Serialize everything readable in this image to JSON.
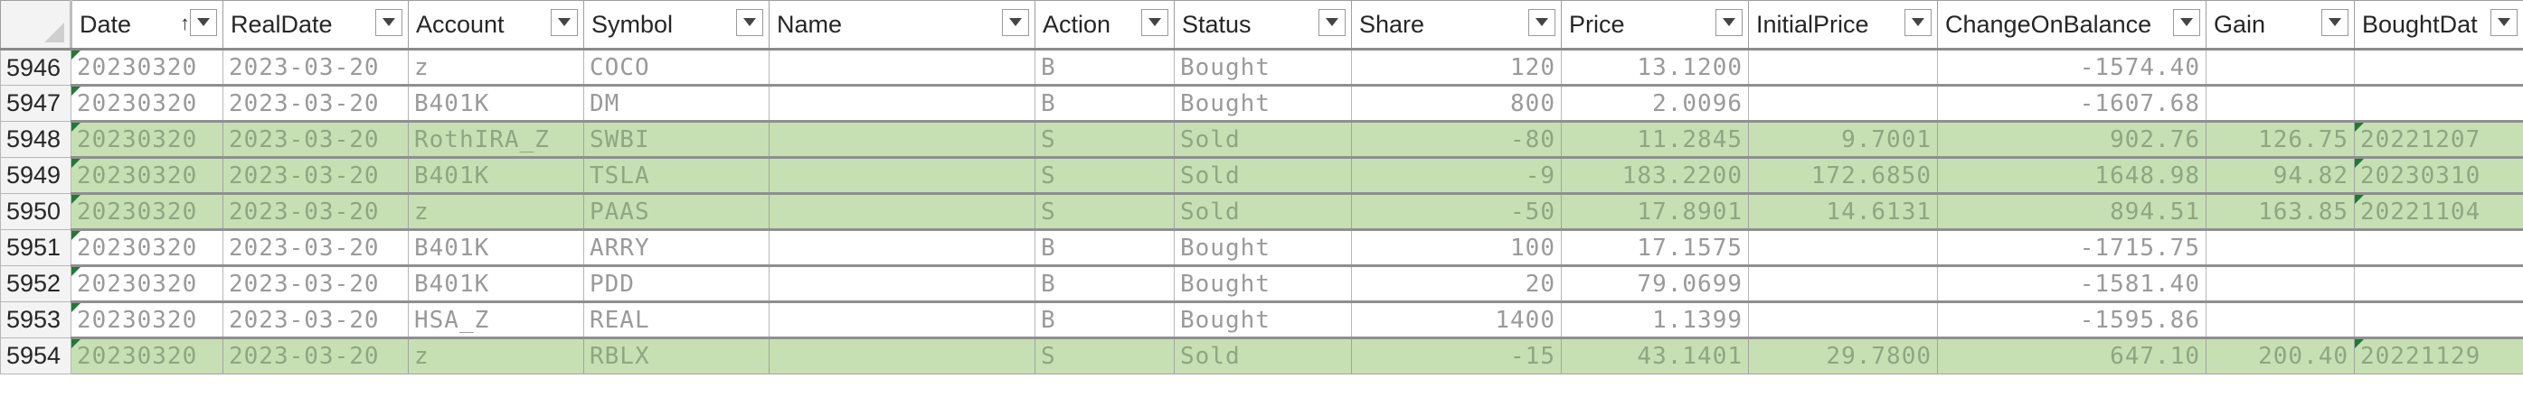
{
  "columns": [
    {
      "label": "Date",
      "sorted": true,
      "sort_glyph": "↑"
    },
    {
      "label": "RealDate"
    },
    {
      "label": "Account"
    },
    {
      "label": "Symbol"
    },
    {
      "label": "Name"
    },
    {
      "label": "Action"
    },
    {
      "label": "Status"
    },
    {
      "label": "Share"
    },
    {
      "label": "Price"
    },
    {
      "label": "InitialPrice"
    },
    {
      "label": "ChangeOnBalance"
    },
    {
      "label": "Gain"
    },
    {
      "label": "BoughtDat"
    }
  ],
  "rows": [
    {
      "rownum": "5946",
      "status_type": "bought",
      "date": "20230320",
      "realdate": "2023-03-20",
      "account": "z",
      "symbol": "COCO",
      "name": "",
      "action": "B",
      "status": "Bought",
      "share": "120",
      "price": "13.1200",
      "initialprice": "",
      "changeonbalance": "-1574.40",
      "gain": "",
      "boughtdate": ""
    },
    {
      "rownum": "5947",
      "status_type": "bought",
      "date": "20230320",
      "realdate": "2023-03-20",
      "account": "B401K",
      "symbol": "DM",
      "name": "",
      "action": "B",
      "status": "Bought",
      "share": "800",
      "price": "2.0096",
      "initialprice": "",
      "changeonbalance": "-1607.68",
      "gain": "",
      "boughtdate": ""
    },
    {
      "rownum": "5948",
      "status_type": "sold",
      "date": "20230320",
      "realdate": "2023-03-20",
      "account": "RothIRA_Z",
      "symbol": "SWBI",
      "name": "",
      "action": "S",
      "status": "Sold",
      "share": "-80",
      "price": "11.2845",
      "initialprice": "9.7001",
      "changeonbalance": "902.76",
      "gain": "126.75",
      "boughtdate": "20221207"
    },
    {
      "rownum": "5949",
      "status_type": "sold",
      "date": "20230320",
      "realdate": "2023-03-20",
      "account": "B401K",
      "symbol": "TSLA",
      "name": "",
      "action": "S",
      "status": "Sold",
      "share": "-9",
      "price": "183.2200",
      "initialprice": "172.6850",
      "changeonbalance": "1648.98",
      "gain": "94.82",
      "boughtdate": "20230310"
    },
    {
      "rownum": "5950",
      "status_type": "sold",
      "date": "20230320",
      "realdate": "2023-03-20",
      "account": "z",
      "symbol": "PAAS",
      "name": "",
      "action": "S",
      "status": "Sold",
      "share": "-50",
      "price": "17.8901",
      "initialprice": "14.6131",
      "changeonbalance": "894.51",
      "gain": "163.85",
      "boughtdate": "20221104"
    },
    {
      "rownum": "5951",
      "status_type": "bought",
      "date": "20230320",
      "realdate": "2023-03-20",
      "account": "B401K",
      "symbol": "ARRY",
      "name": "",
      "action": "B",
      "status": "Bought",
      "share": "100",
      "price": "17.1575",
      "initialprice": "",
      "changeonbalance": "-1715.75",
      "gain": "",
      "boughtdate": ""
    },
    {
      "rownum": "5952",
      "status_type": "bought",
      "date": "20230320",
      "realdate": "2023-03-20",
      "account": "B401K",
      "symbol": "PDD",
      "name": "",
      "action": "B",
      "status": "Bought",
      "share": "20",
      "price": "79.0699",
      "initialprice": "",
      "changeonbalance": "-1581.40",
      "gain": "",
      "boughtdate": ""
    },
    {
      "rownum": "5953",
      "status_type": "bought",
      "date": "20230320",
      "realdate": "2023-03-20",
      "account": "HSA_Z",
      "symbol": "REAL",
      "name": "",
      "action": "B",
      "status": "Bought",
      "share": "1400",
      "price": "1.1399",
      "initialprice": "",
      "changeonbalance": "-1595.86",
      "gain": "",
      "boughtdate": ""
    },
    {
      "rownum": "5954",
      "status_type": "sold",
      "date": "20230320",
      "realdate": "2023-03-20",
      "account": "z",
      "symbol": "RBLX",
      "name": "",
      "action": "S",
      "status": "Sold",
      "share": "-15",
      "price": "43.1401",
      "initialprice": "29.7800",
      "changeonbalance": "647.10",
      "gain": "200.40",
      "boughtdate": "20221129"
    }
  ],
  "colors": {
    "sold_row_fill": "#c6e0b4",
    "error_indicator": "#1e7b34",
    "header_bg": "#ffffff",
    "rownum_bg": "#f3f3f3"
  }
}
